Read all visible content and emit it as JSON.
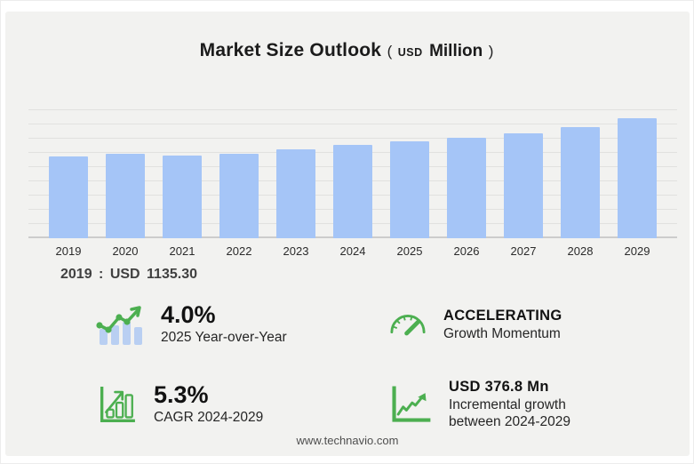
{
  "title": {
    "main": "Market Size Outlook",
    "paren_open": "(",
    "currency": "USD",
    "unit": "Million",
    "paren_close": ")"
  },
  "chart_data": {
    "type": "bar",
    "title": "Market Size Outlook (USD Million)",
    "categories": [
      "2019",
      "2020",
      "2021",
      "2022",
      "2023",
      "2024",
      "2025",
      "2026",
      "2027",
      "2028",
      "2029"
    ],
    "values": [
      1135.3,
      1172,
      1143,
      1174,
      1232,
      1291,
      1343,
      1398,
      1458,
      1547,
      1668
    ],
    "xlabel": "",
    "ylabel": "USD Million",
    "ylim": [
      0,
      2000
    ],
    "grid": true,
    "gridline_count": 9,
    "legend": "none",
    "bar_color": "#a5c5f7",
    "base_year_label": "2019 : USD 1135.30"
  },
  "note": "2019 : USD 1135.30",
  "stats": [
    {
      "icon": "trend-bars-icon",
      "value": "4.0%",
      "label": "2025 Year-over-Year"
    },
    {
      "icon": "gauge-icon",
      "value": "ACCELERATING",
      "label": "Growth Momentum"
    },
    {
      "icon": "bar-growth-icon",
      "value": "5.3%",
      "label": "CAGR 2024-2029"
    },
    {
      "icon": "line-growth-icon",
      "value": "USD 376.8 Mn",
      "label": "Incremental growth",
      "label2": "between 2024-2029"
    }
  ],
  "footer": {
    "url": "www.technavio.com"
  },
  "colors": {
    "panel_bg": "#f2f2f0",
    "bar_blue": "#a5c5f7",
    "icon_bar_blue": "#b9cff2",
    "accent_green": "#4caf50",
    "gridline": "#e1e1df",
    "text_dark": "#1b1b1b"
  }
}
